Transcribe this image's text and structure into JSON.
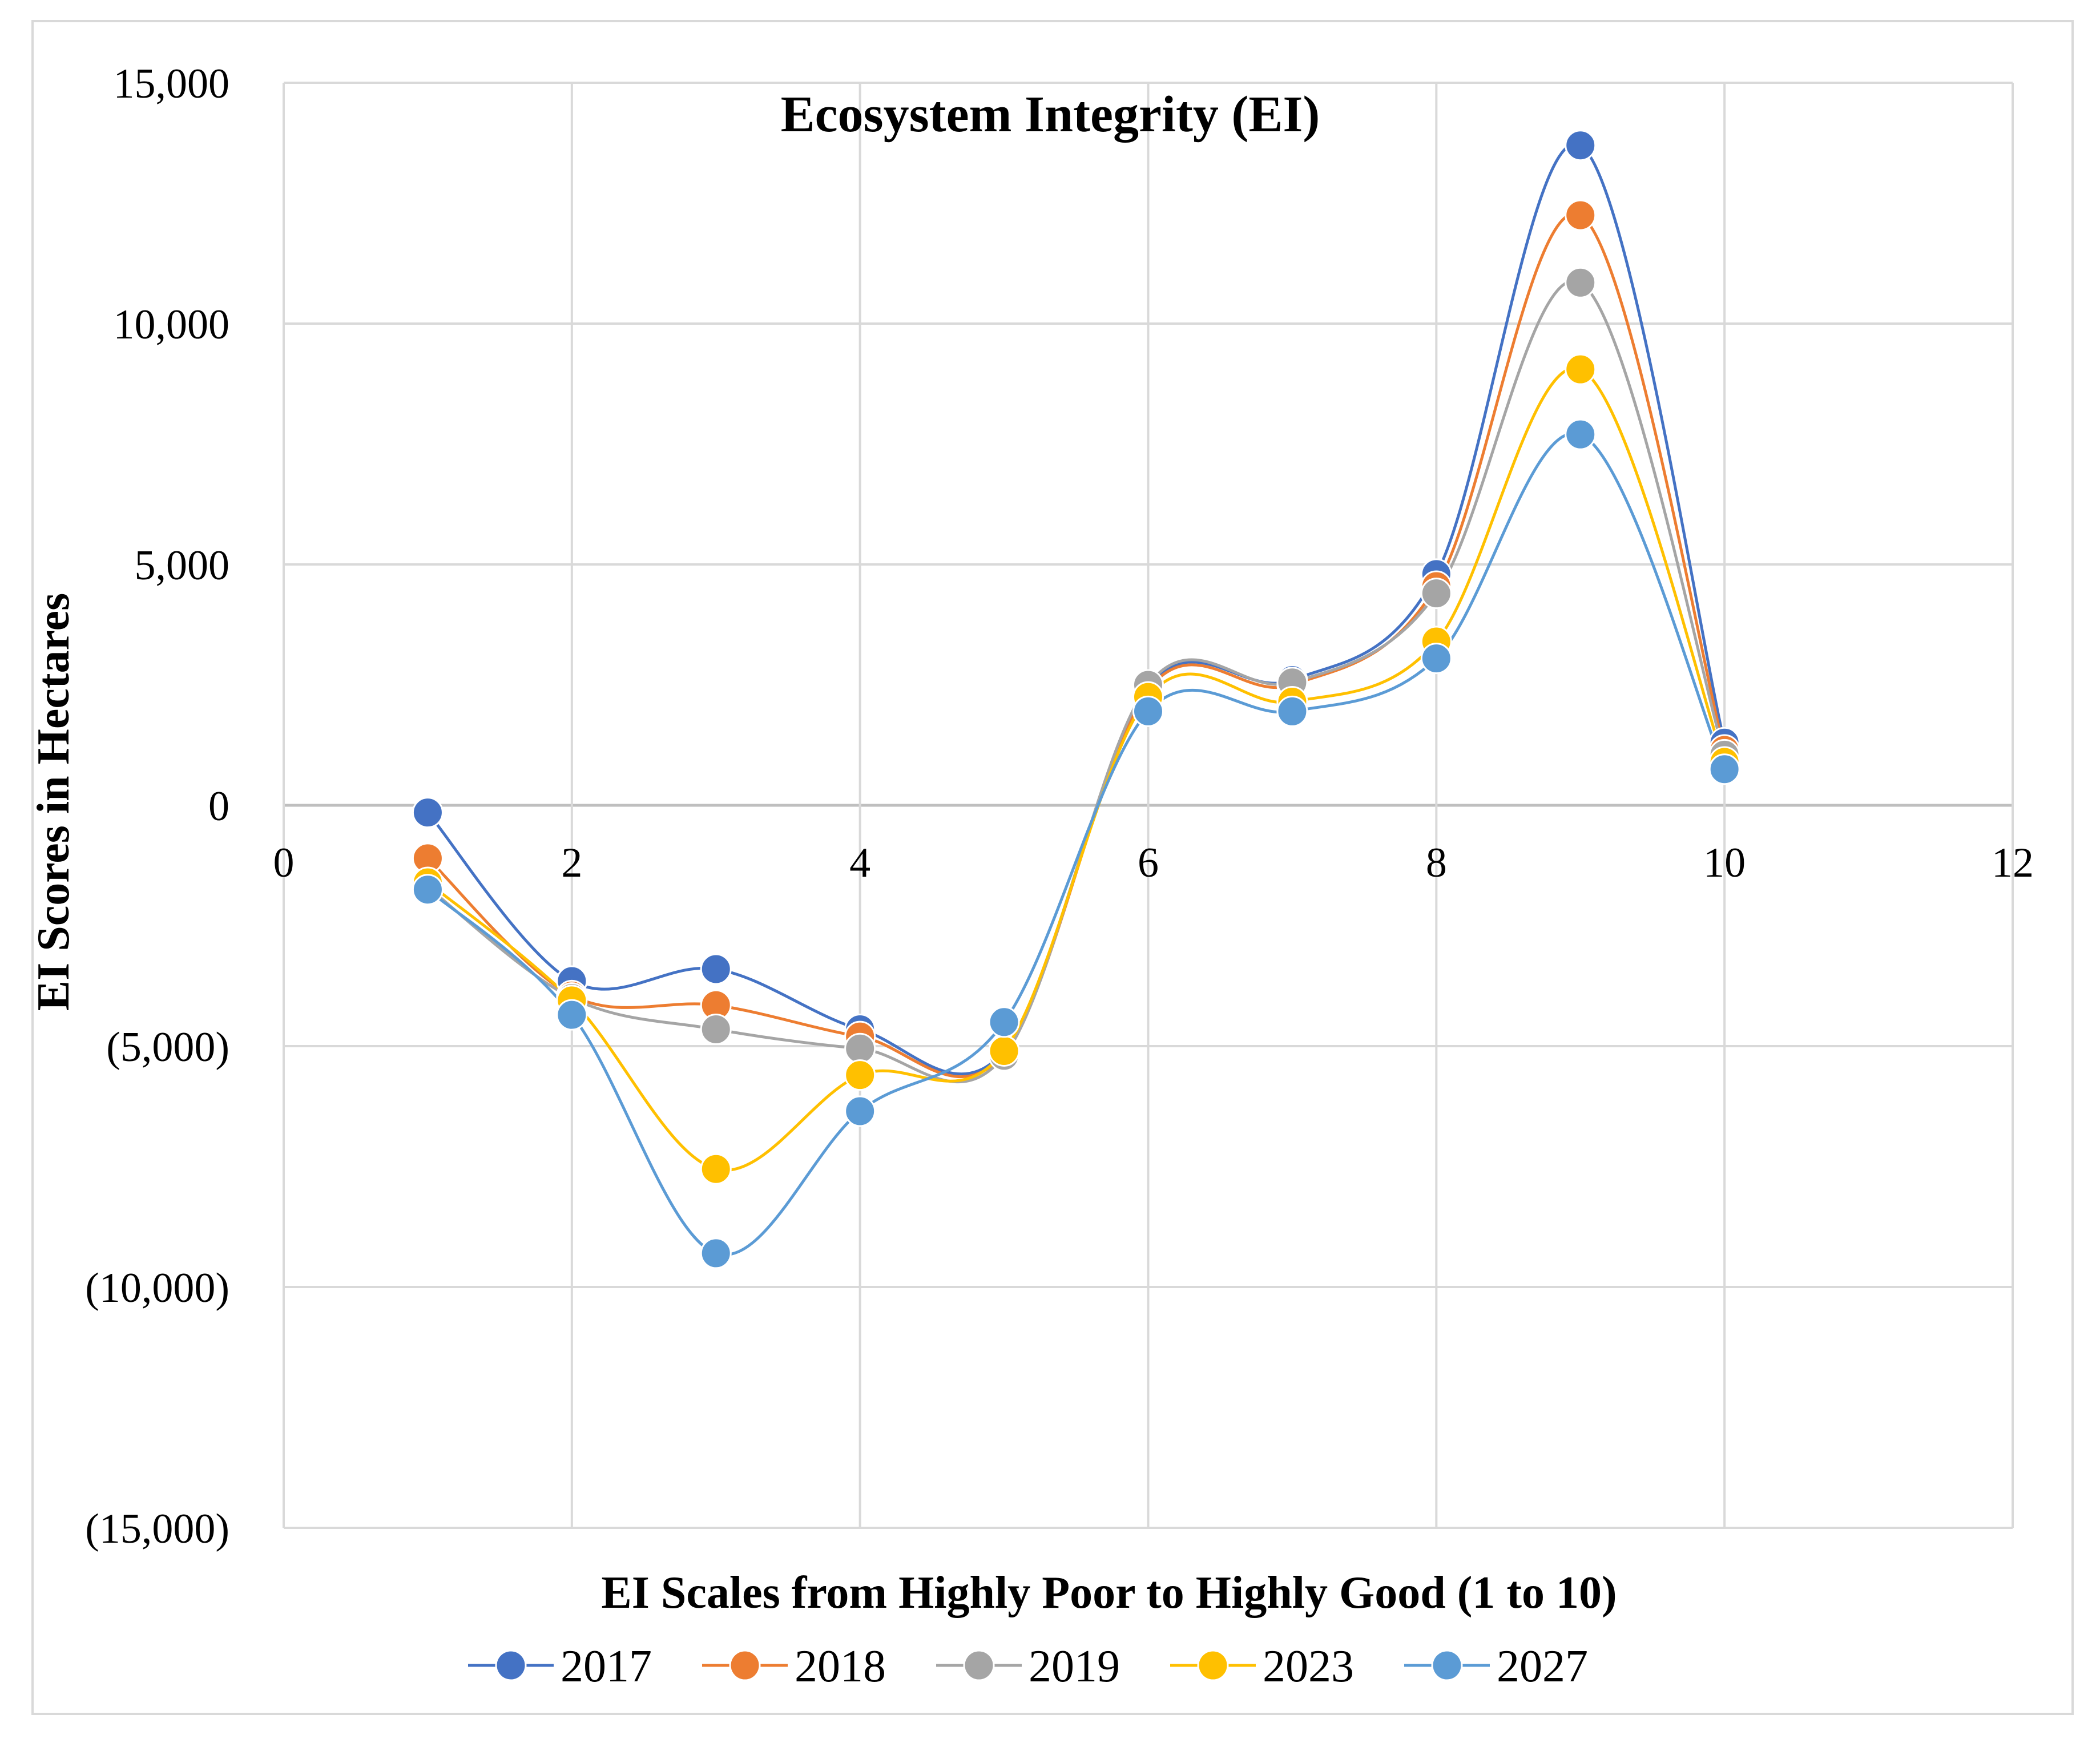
{
  "chart_data": {
    "type": "line",
    "smooth": true,
    "title": "Ecosystem Integrity (EI)",
    "xlabel": "EI Scales from Highly Poor to Highly Good (1 to 10)",
    "ylabel": "EI Scores in Hectares",
    "xlim": [
      0,
      12
    ],
    "ylim": [
      -15000,
      15000
    ],
    "x_ticks": [
      0,
      2,
      4,
      6,
      8,
      10,
      12
    ],
    "x_tick_labels": [
      "0",
      "2",
      "4",
      "6",
      "8",
      "10",
      "12"
    ],
    "y_ticks": [
      15000,
      10000,
      5000,
      0,
      -5000,
      -10000,
      -15000
    ],
    "y_tick_labels": [
      "15,000",
      "10,000",
      "5,000",
      "0",
      "(5,000)",
      "(10,000)",
      "(15,000)"
    ],
    "grid": true,
    "legend_position": "bottom",
    "x": [
      1,
      2,
      3,
      4,
      5,
      6,
      7,
      8,
      9,
      10
    ],
    "series": [
      {
        "name": "2017",
        "color": "#4472c4",
        "values": [
          -150,
          -3650,
          -3400,
          -4650,
          -5100,
          2450,
          2600,
          4800,
          13700,
          1300
        ]
      },
      {
        "name": "2018",
        "color": "#ed7d31",
        "values": [
          -1100,
          -3950,
          -4150,
          -4800,
          -5150,
          2400,
          2500,
          4550,
          12250,
          1150
        ]
      },
      {
        "name": "2019",
        "color": "#a5a5a5",
        "values": [
          -1700,
          -4000,
          -4650,
          -5050,
          -5200,
          2500,
          2550,
          4400,
          10850,
          1050
        ]
      },
      {
        "name": "2023",
        "color": "#ffc000",
        "values": [
          -1600,
          -4050,
          -7550,
          -5600,
          -5100,
          2250,
          2150,
          3400,
          9050,
          900
        ]
      },
      {
        "name": "2027",
        "color": "#5b9bd5",
        "values": [
          -1750,
          -4350,
          -9300,
          -6350,
          -4500,
          1950,
          1950,
          3050,
          7700,
          750
        ]
      }
    ]
  }
}
